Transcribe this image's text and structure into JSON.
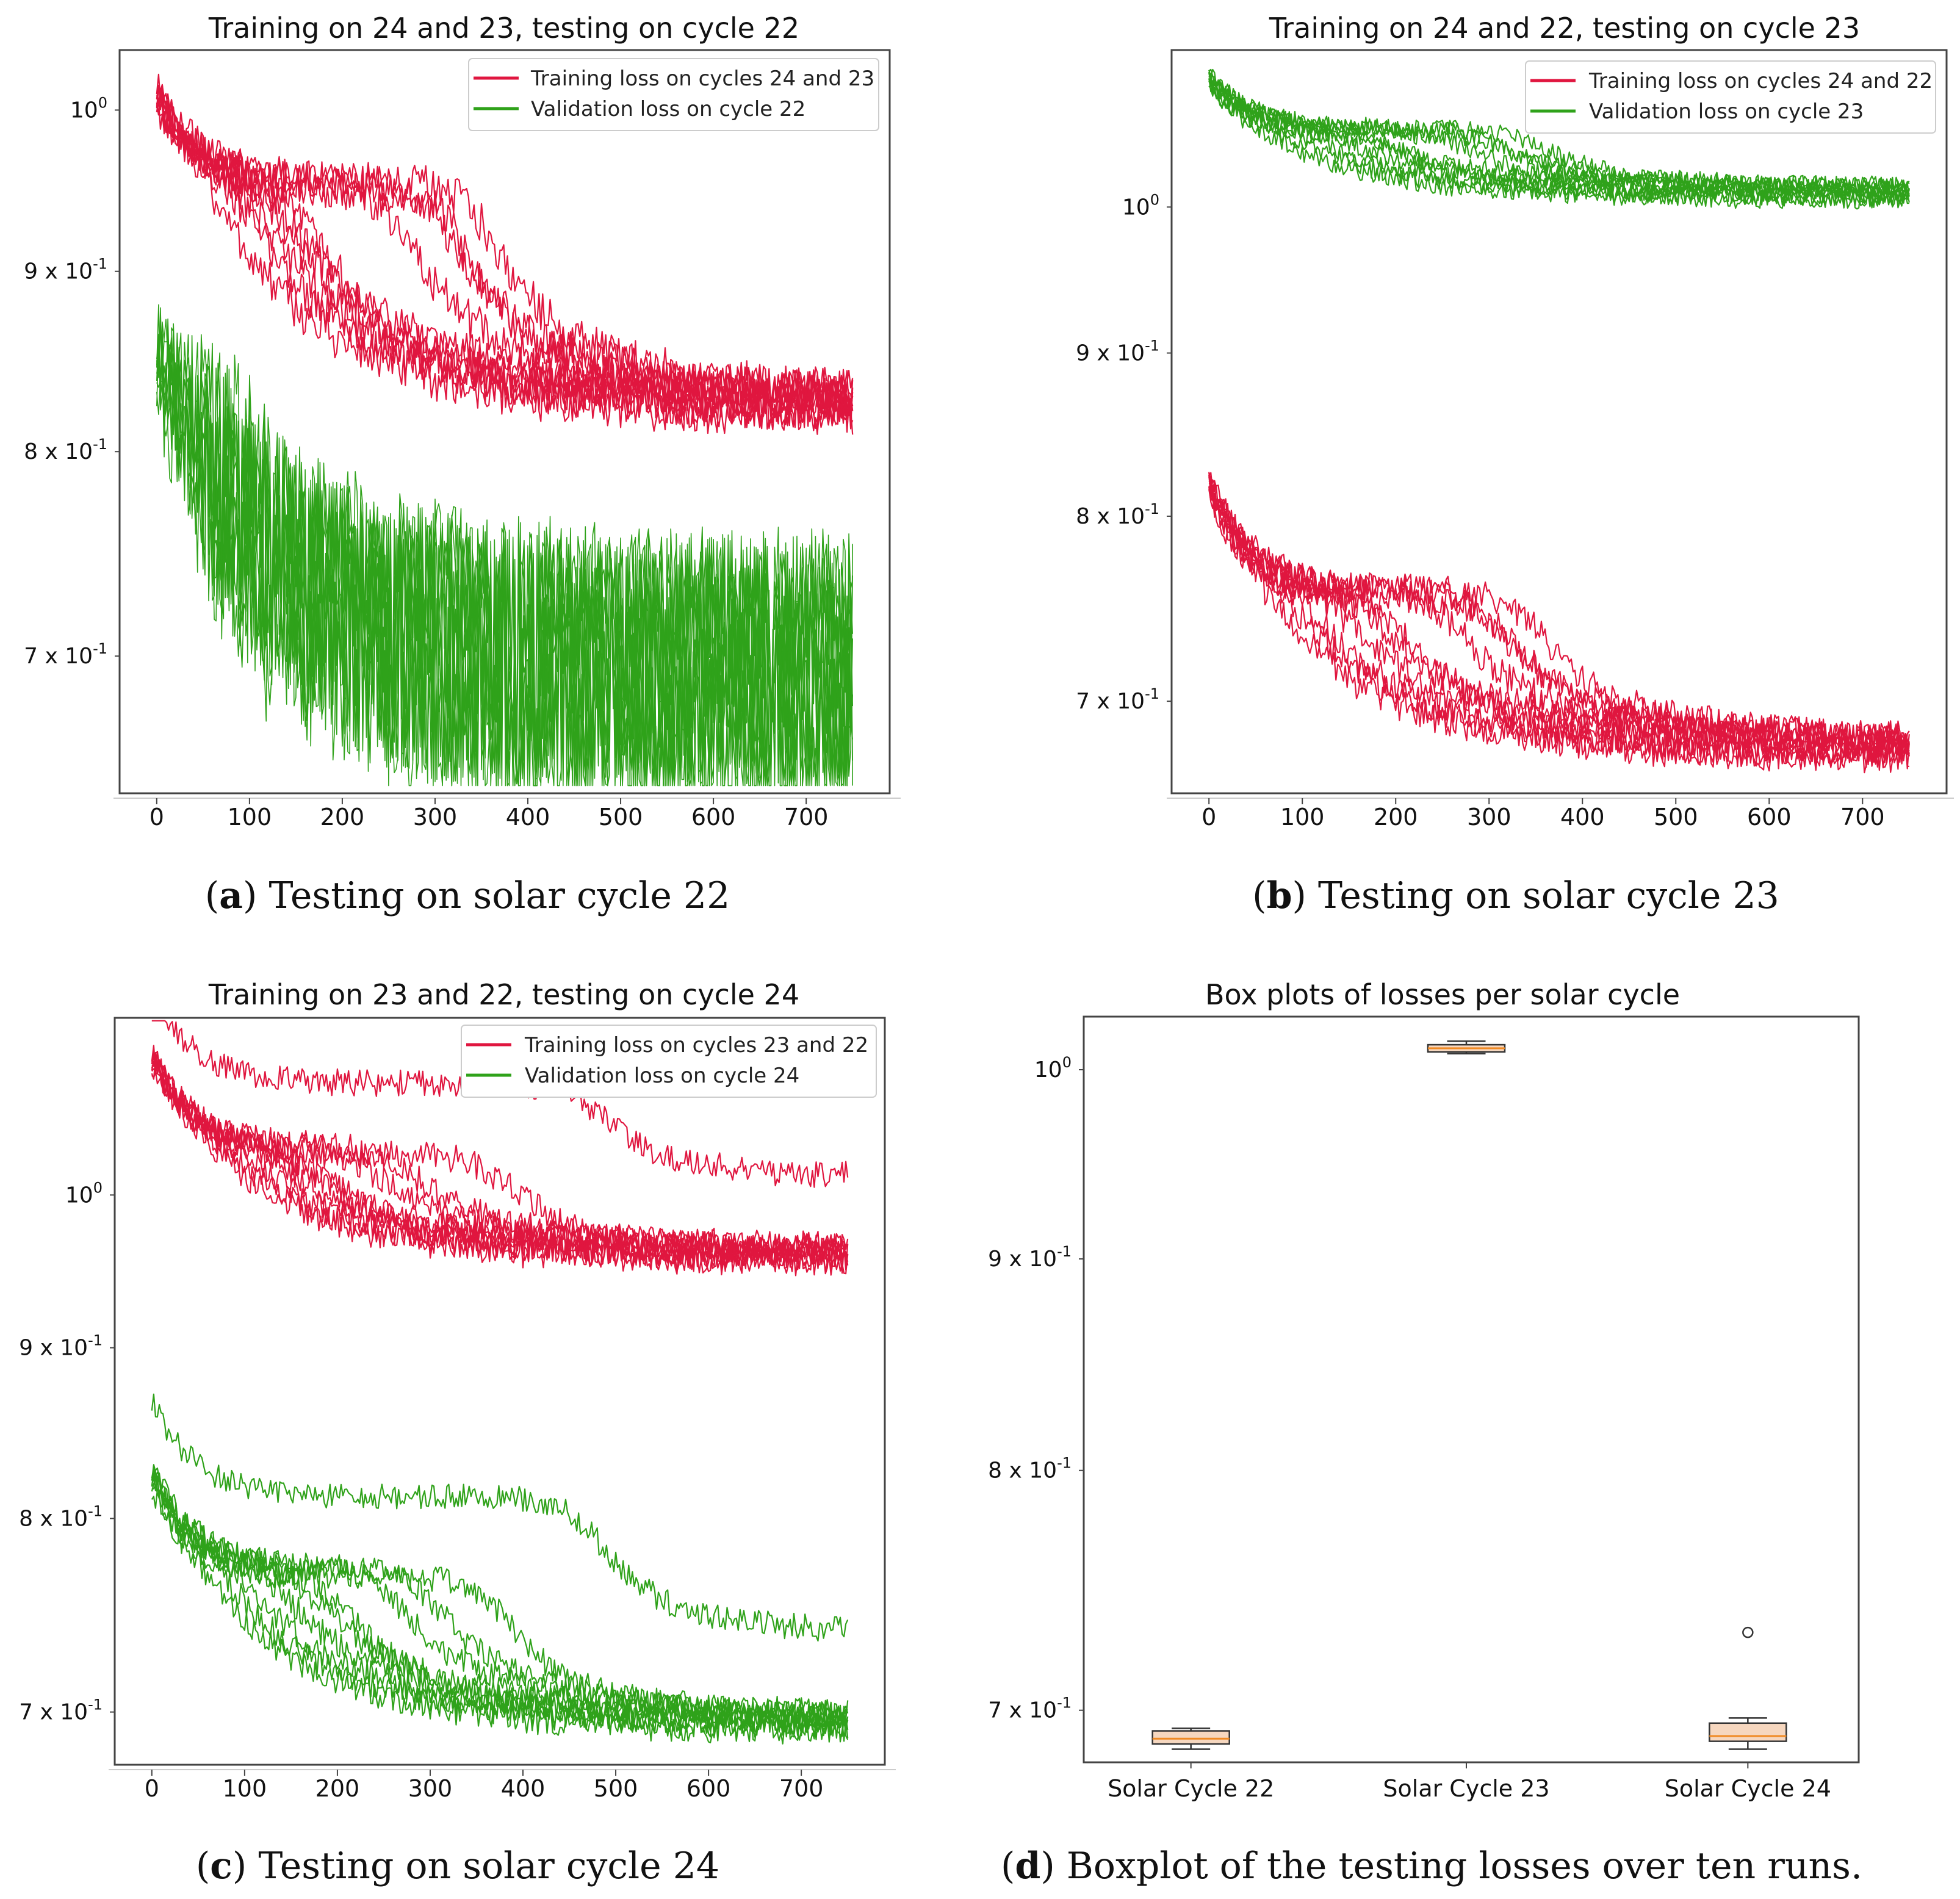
{
  "colors": {
    "training": "#e0163f",
    "validation": "#2fa21a",
    "box_fill": "#f6d7bf",
    "median": "#f08a24"
  },
  "captions": [
    {
      "letter": "a",
      "text": " Testing on solar cycle 22",
      "open": "(",
      "close": ")"
    },
    {
      "letter": "b",
      "text": " Testing on solar cycle 23",
      "open": "(",
      "close": ")"
    },
    {
      "letter": "c",
      "text": " Testing on solar cycle 24",
      "open": "(",
      "close": ")"
    },
    {
      "letter": "d",
      "text": " Boxplot of the testing losses over ten runs.",
      "open": "(",
      "close": ")"
    }
  ],
  "chart_data": [
    {
      "type": "line",
      "title": "Training on 24 and 23, testing on cycle 22",
      "xlabel": "",
      "ylabel": "",
      "yscale": "log",
      "xlim": [
        -40,
        790
      ],
      "ylim": [
        0.64,
        1.04
      ],
      "xticks": [
        0,
        100,
        200,
        300,
        400,
        500,
        600,
        700
      ],
      "yticks": [
        {
          "v": 1.0,
          "base": "10",
          "exp": "0"
        },
        {
          "v": 0.9,
          "base": "9 x 10",
          "exp": "-1"
        },
        {
          "v": 0.8,
          "base": "8 x 10",
          "exp": "-1"
        },
        {
          "v": 0.7,
          "base": "7 x 10",
          "exp": "-1"
        }
      ],
      "legend": [
        {
          "label": "Training loss on cycles 24 and 23",
          "series": "training"
        },
        {
          "label": "Validation loss on cycle 22",
          "series": "validation"
        }
      ],
      "legend_position": "top-right",
      "runs": 10,
      "series": [
        {
          "name": "Training loss on cycles 24 and 23",
          "key": "training",
          "start": 1.01,
          "end": 0.825,
          "plateau": 0.95,
          "noise": 0.012,
          "knees": [
            60,
            90,
            100,
            120,
            130,
            160,
            260,
            310,
            330,
            360
          ],
          "offsets": [
            -0.006,
            -0.003,
            0.0,
            0.003,
            0.006,
            -0.004,
            0.002,
            0.005,
            -0.002,
            0.004
          ]
        },
        {
          "name": "Validation loss on cycle 22",
          "key": "validation",
          "start": 0.86,
          "end": 0.69,
          "plateau": 0.79,
          "noise": 0.065,
          "knees": [
            30,
            40,
            45,
            50,
            55,
            60,
            65,
            70,
            75,
            80
          ],
          "offsets": [
            -0.006,
            -0.003,
            0.0,
            0.003,
            0.006,
            -0.004,
            0.002,
            0.005,
            -0.002,
            0.004
          ]
        }
      ]
    },
    {
      "type": "line",
      "title": "Training on 24 and 22, testing on cycle 23",
      "xlabel": "",
      "ylabel": "",
      "yscale": "log",
      "xlim": [
        -40,
        790
      ],
      "ylim": [
        0.655,
        1.12
      ],
      "xticks": [
        0,
        100,
        200,
        300,
        400,
        500,
        600,
        700
      ],
      "yticks": [
        {
          "v": 1.0,
          "base": "10",
          "exp": "0"
        },
        {
          "v": 0.9,
          "base": "9 x 10",
          "exp": "-1"
        },
        {
          "v": 0.8,
          "base": "8 x 10",
          "exp": "-1"
        },
        {
          "v": 0.7,
          "base": "7 x 10",
          "exp": "-1"
        }
      ],
      "legend": [
        {
          "label": "Training loss on cycles 24 and 22",
          "series": "training"
        },
        {
          "label": "Validation loss on cycle 23",
          "series": "validation"
        }
      ],
      "legend_position": "top-right",
      "runs": 10,
      "series": [
        {
          "name": "Training loss on cycles 24 and 22",
          "key": "training",
          "start": 0.818,
          "end": 0.677,
          "plateau": 0.755,
          "noise": 0.008,
          "knees": [
            70,
            90,
            100,
            130,
            160,
            200,
            260,
            300,
            320,
            350
          ],
          "offsets": [
            -0.005,
            -0.003,
            0.0,
            0.003,
            0.005,
            -0.004,
            0.002,
            0.004,
            -0.002,
            0.003
          ]
        },
        {
          "name": "Validation loss on cycle 23",
          "key": "validation",
          "start": 1.097,
          "end": 1.01,
          "plateau": 1.055,
          "noise": 0.007,
          "knees": [
            70,
            90,
            100,
            130,
            160,
            200,
            260,
            300,
            320,
            350
          ],
          "offsets": [
            -0.005,
            -0.003,
            0.0,
            0.003,
            0.005,
            -0.004,
            0.002,
            0.004,
            -0.002,
            0.003
          ]
        }
      ]
    },
    {
      "type": "line",
      "title": "Training on 23 and 22, testing on cycle 24",
      "xlabel": "",
      "ylabel": "",
      "yscale": "log",
      "xlim": [
        -40,
        790
      ],
      "ylim": [
        0.675,
        1.13
      ],
      "xticks": [
        0,
        100,
        200,
        300,
        400,
        500,
        600,
        700
      ],
      "yticks": [
        {
          "v": 1.0,
          "base": "10",
          "exp": "0"
        },
        {
          "v": 0.9,
          "base": "9 x 10",
          "exp": "-1"
        },
        {
          "v": 0.8,
          "base": "8 x 10",
          "exp": "-1"
        },
        {
          "v": 0.7,
          "base": "7 x 10",
          "exp": "-1"
        }
      ],
      "legend": [
        {
          "label": "Training loss on cycles 23 and 22",
          "series": "training"
        },
        {
          "label": "Validation loss on cycle 24",
          "series": "validation"
        }
      ],
      "legend_position": "top-right",
      "runs": 10,
      "series": [
        {
          "name": "Training loss on cycles 23 and 22",
          "key": "training",
          "start": 1.1,
          "end": 0.96,
          "plateau": 1.03,
          "noise": 0.01,
          "knees": [
            80,
            90,
            100,
            130,
            150,
            170,
            230,
            270,
            380,
            480
          ],
          "offsets": [
            -0.005,
            -0.002,
            0.0,
            0.003,
            0.005,
            -0.004,
            0.002,
            0.004,
            -0.002,
            0.05
          ]
        },
        {
          "name": "Validation loss on cycle 24",
          "key": "validation",
          "start": 0.826,
          "end": 0.695,
          "plateau": 0.77,
          "noise": 0.007,
          "knees": [
            60,
            80,
            100,
            130,
            160,
            200,
            260,
            300,
            380,
            480
          ],
          "offsets": [
            -0.004,
            -0.002,
            0.0,
            0.002,
            0.004,
            -0.003,
            0.002,
            0.003,
            -0.002,
            0.042
          ]
        }
      ]
    },
    {
      "type": "box",
      "title": "Box plots of losses per solar cycle",
      "yscale": "log",
      "ylim": [
        0.68,
        1.03
      ],
      "categories": [
        "Solar Cycle 22",
        "Solar Cycle 23",
        "Solar Cycle 24"
      ],
      "yticks": [
        {
          "v": 1.0,
          "base": "10",
          "exp": "0"
        },
        {
          "v": 0.9,
          "base": "9 x 10",
          "exp": "-1"
        },
        {
          "v": 0.8,
          "base": "8 x 10",
          "exp": "-1"
        },
        {
          "v": 0.7,
          "base": "7 x 10",
          "exp": "-1"
        }
      ],
      "boxes": [
        {
          "category": "Solar Cycle 22",
          "min": 0.685,
          "q1": 0.687,
          "median": 0.689,
          "q3": 0.692,
          "max": 0.693,
          "outliers": []
        },
        {
          "category": "Solar Cycle 23",
          "min": 1.009,
          "q1": 1.01,
          "median": 1.012,
          "q3": 1.014,
          "max": 1.016,
          "outliers": []
        },
        {
          "category": "Solar Cycle 24",
          "min": 0.685,
          "q1": 0.688,
          "median": 0.69,
          "q3": 0.695,
          "max": 0.697,
          "outliers": [
            0.731
          ]
        }
      ]
    }
  ]
}
